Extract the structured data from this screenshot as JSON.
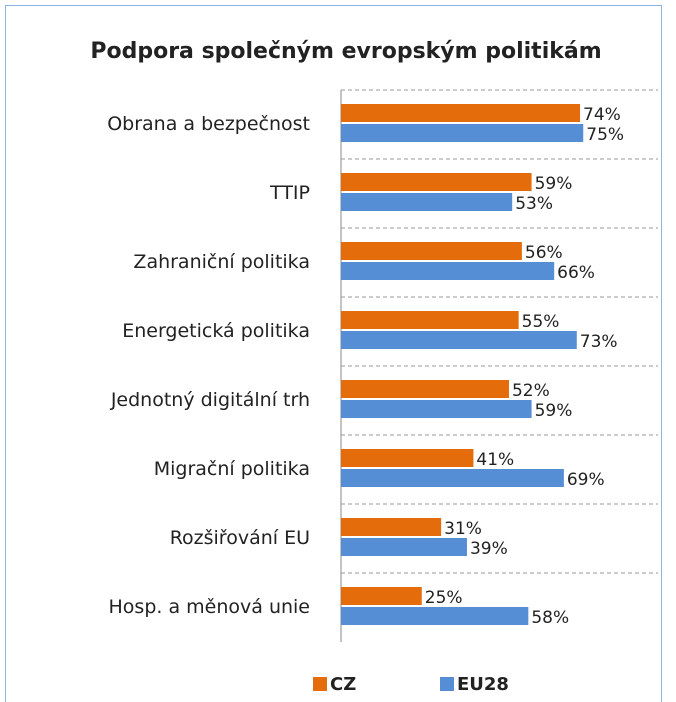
{
  "chart_data": {
    "type": "hbar",
    "title": "Podpora společným evropským politikám",
    "categories": [
      "Obrana a bezpečnost",
      "TTIP",
      "Zahraniční politika",
      "Energetická politika",
      "Jednotný digitální trh",
      "Migrační politika",
      "Rozšiřování EU",
      "Hosp. a měnová unie"
    ],
    "series": [
      {
        "name": "CZ",
        "color": "#e46c0a",
        "values": [
          74,
          59,
          56,
          55,
          52,
          41,
          31,
          25
        ],
        "value_labels": [
          "74%",
          "59%",
          "56%",
          "55%",
          "52%",
          "41%",
          "31%",
          "25%"
        ]
      },
      {
        "name": "EU28",
        "color": "#558ed5",
        "values": [
          75,
          53,
          66,
          73,
          59,
          69,
          39,
          58
        ],
        "value_labels": [
          "75%",
          "53%",
          "66%",
          "73%",
          "59%",
          "69%",
          "39%",
          "58%"
        ]
      }
    ],
    "xlim": [
      0,
      100
    ],
    "grid": true,
    "legend": "bottom"
  }
}
